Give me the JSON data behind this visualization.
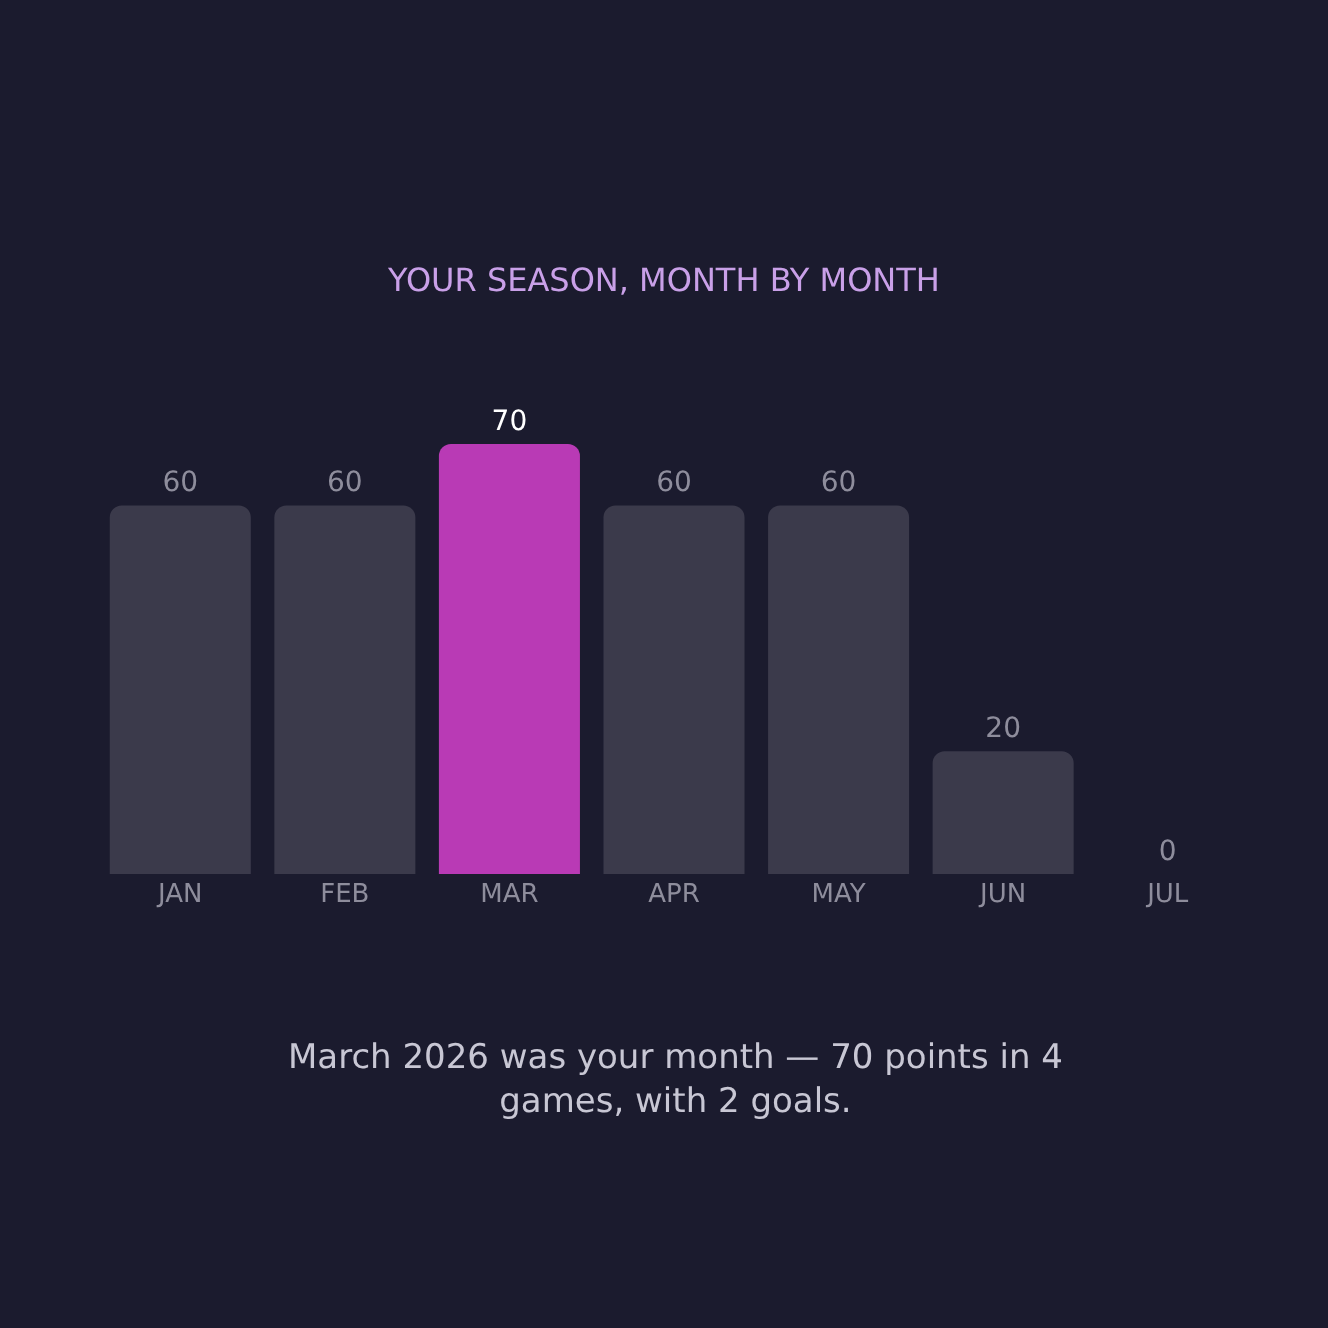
{
  "chart_data": {
    "type": "bar",
    "title": "YOUR SEASON, MONTH BY MONTH",
    "categories": [
      "JAN",
      "FEB",
      "MAR",
      "APR",
      "MAY",
      "JUN",
      "JUL"
    ],
    "values": [
      60,
      60,
      70,
      60,
      60,
      20,
      0
    ],
    "colors": [
      "#3b3a4b",
      "#3b3a4b",
      "#b93ab5",
      "#3b3a4b",
      "#3b3a4b",
      "#3b3a4b",
      "#3b3a4b"
    ],
    "data_labels": true,
    "annotations": [
      "March 2026 was your month — 70 points in 4 games, with 2 goals."
    ]
  }
}
